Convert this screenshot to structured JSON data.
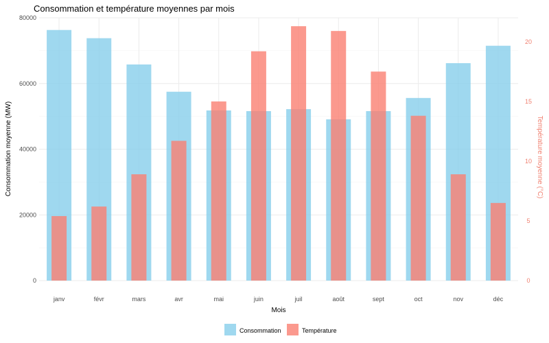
{
  "chart_data": {
    "type": "bar",
    "title": "Consommation et température moyennes par mois",
    "xlabel": "Mois",
    "ylabel": "Consommation moyenne (MW)",
    "y2label": "Température moyenne (°C)",
    "categories": [
      "janv",
      "févr",
      "mars",
      "avr",
      "mai",
      "juin",
      "juil",
      "août",
      "sept",
      "oct",
      "nov",
      "déc"
    ],
    "ylim": [
      0,
      80000
    ],
    "y2lim": [
      0,
      22
    ],
    "yticks": [
      0,
      20000,
      40000,
      60000,
      80000
    ],
    "y2ticks": [
      0,
      5,
      10,
      15,
      20
    ],
    "grid": true,
    "legend_position": "bottom",
    "series": [
      {
        "name": "Consommation",
        "axis": "left",
        "color": "#87CEEB",
        "values": [
          76300,
          73800,
          65800,
          57500,
          51800,
          51600,
          52200,
          49100,
          51600,
          55600,
          66200,
          71500
        ]
      },
      {
        "name": "Température",
        "axis": "right",
        "color": "#FA8072",
        "values": [
          5.4,
          6.2,
          8.9,
          11.7,
          15.0,
          19.2,
          21.3,
          20.9,
          17.5,
          13.8,
          8.9,
          6.5
        ]
      }
    ]
  }
}
